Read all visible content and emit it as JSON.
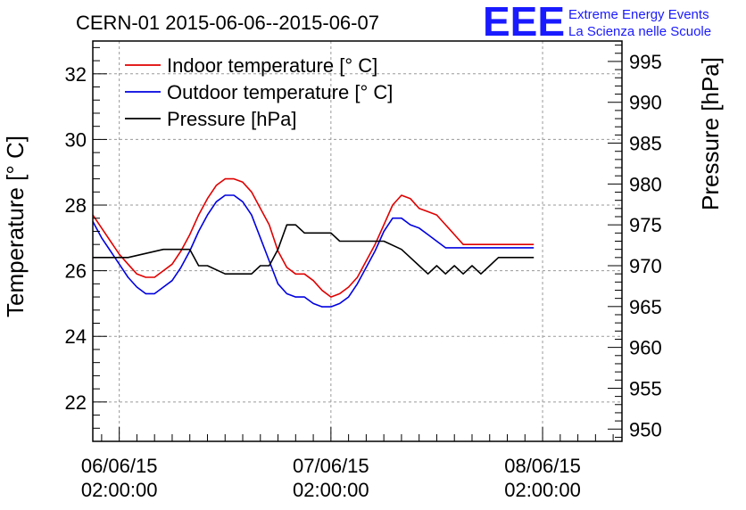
{
  "chart_data": {
    "type": "line",
    "title": "CERN-01 2015-06-06--2015-06-07",
    "logo": {
      "mark": "EEE",
      "line1": "Extreme Energy Events",
      "line2": "La Scienza nelle Scuole"
    },
    "ylabel": "Temperature [° C]",
    "y2label": "Pressure [hPa]",
    "ylim": [
      20.8,
      33.0
    ],
    "y2lim": [
      948.5,
      997.5
    ],
    "yticks": [
      22,
      24,
      26,
      28,
      30,
      32
    ],
    "y2ticks": [
      950,
      955,
      960,
      965,
      970,
      975,
      980,
      985,
      990,
      995
    ],
    "xlim": [
      -3.0,
      57.0
    ],
    "xticks": [
      {
        "x": 0,
        "label1": "06/06/15",
        "label2": "02:00:00"
      },
      {
        "x": 24,
        "label1": "07/06/15",
        "label2": "02:00:00"
      },
      {
        "x": 48,
        "label1": "08/06/15",
        "label2": "02:00:00"
      }
    ],
    "grid": true,
    "legend_position": "top-left",
    "series": [
      {
        "name": "Indoor temperature [° C]",
        "color": "#e00000",
        "axis": "left",
        "x": [
          -3,
          -2,
          -1,
          0,
          1,
          2,
          3,
          4,
          5,
          6,
          7,
          8,
          9,
          10,
          11,
          12,
          13,
          14,
          15,
          16,
          17,
          18,
          19,
          20,
          21,
          22,
          23,
          24,
          25,
          26,
          27,
          28,
          29,
          30,
          31,
          32,
          33,
          34,
          35,
          36,
          37,
          38,
          39,
          40,
          41,
          42,
          43,
          44,
          45,
          46,
          47
        ],
        "y": [
          27.7,
          27.3,
          26.9,
          26.5,
          26.2,
          25.9,
          25.8,
          25.8,
          26.0,
          26.2,
          26.6,
          27.1,
          27.7,
          28.2,
          28.6,
          28.8,
          28.8,
          28.7,
          28.4,
          27.9,
          27.4,
          26.6,
          26.1,
          25.9,
          25.9,
          25.7,
          25.4,
          25.2,
          25.3,
          25.5,
          25.8,
          26.3,
          26.8,
          27.4,
          28.0,
          28.3,
          28.2,
          27.9,
          27.8,
          27.7,
          27.4,
          27.1,
          26.8,
          26.8,
          26.8,
          26.8,
          26.8,
          26.8,
          26.8,
          26.8,
          26.8
        ]
      },
      {
        "name": "Outdoor temperature [° C]",
        "color": "#0000e0",
        "axis": "left",
        "x": [
          -3,
          -2,
          -1,
          0,
          1,
          2,
          3,
          4,
          5,
          6,
          7,
          8,
          9,
          10,
          11,
          12,
          13,
          14,
          15,
          16,
          17,
          18,
          19,
          20,
          21,
          22,
          23,
          24,
          25,
          26,
          27,
          28,
          29,
          30,
          31,
          32,
          33,
          34,
          35,
          36,
          37,
          38,
          39,
          40,
          41,
          42,
          43,
          44,
          45,
          46,
          47
        ],
        "y": [
          27.5,
          27.0,
          26.6,
          26.2,
          25.8,
          25.5,
          25.3,
          25.3,
          25.5,
          25.7,
          26.1,
          26.6,
          27.2,
          27.7,
          28.1,
          28.3,
          28.3,
          28.1,
          27.7,
          27.0,
          26.3,
          25.6,
          25.3,
          25.2,
          25.2,
          25.0,
          24.9,
          24.9,
          25.0,
          25.2,
          25.6,
          26.1,
          26.6,
          27.2,
          27.6,
          27.6,
          27.4,
          27.3,
          27.1,
          26.9,
          26.7,
          26.7,
          26.7,
          26.7,
          26.7,
          26.7,
          26.7,
          26.7,
          26.7,
          26.7,
          26.7
        ]
      },
      {
        "name": "Pressure [hPa]",
        "color": "#000000",
        "axis": "right",
        "x": [
          -3,
          1,
          5,
          8,
          9,
          10,
          12,
          14,
          15,
          16,
          17,
          18,
          19,
          20,
          21,
          22,
          23,
          24,
          25,
          27,
          30,
          32,
          33,
          34,
          35,
          36,
          37,
          38,
          39,
          40,
          41,
          42,
          43,
          44,
          45,
          46,
          47
        ],
        "y": [
          971,
          971,
          972,
          972,
          970,
          970,
          969,
          969,
          969,
          970,
          970,
          972,
          975,
          975,
          974,
          974,
          974,
          974,
          973,
          973,
          973,
          972,
          971,
          970,
          969,
          970,
          969,
          970,
          969,
          970,
          969,
          970,
          971,
          971,
          971,
          971,
          971
        ]
      }
    ]
  }
}
